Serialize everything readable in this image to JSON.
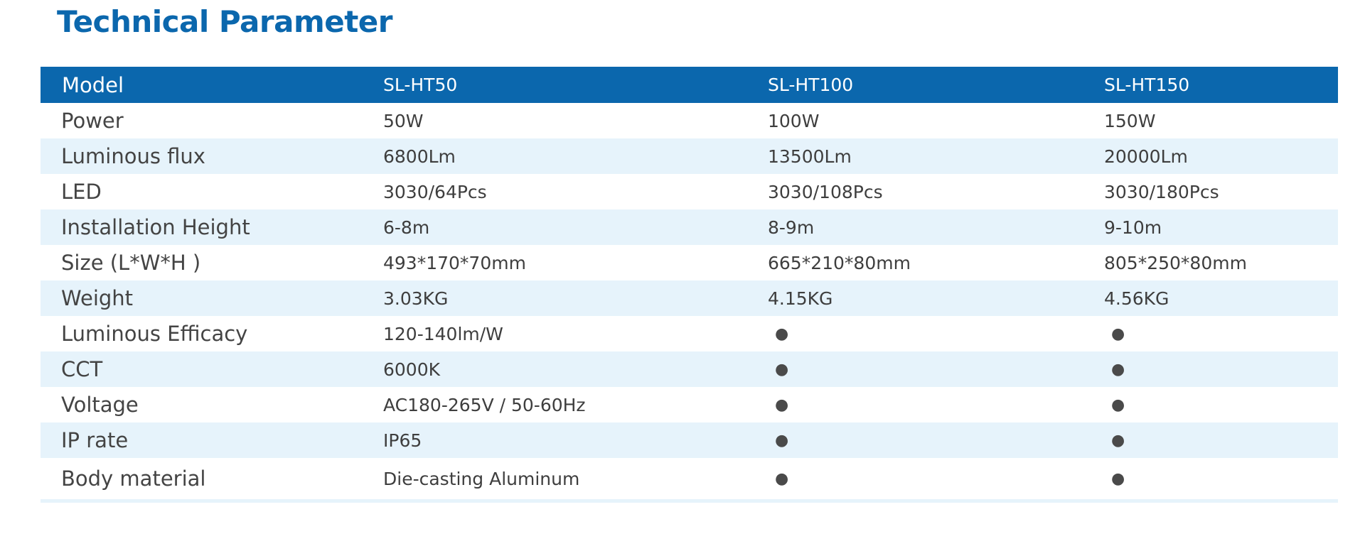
{
  "title": "Technical Parameter",
  "table": {
    "headers": [
      "Model",
      "SL-HT50",
      "SL-HT100",
      "SL-HT150"
    ],
    "rows": [
      {
        "label": "Power",
        "values": [
          "50W",
          "100W",
          "150W"
        ]
      },
      {
        "label": "Luminous flux",
        "values": [
          "6800Lm",
          "13500Lm",
          "20000Lm"
        ]
      },
      {
        "label": "LED",
        "values": [
          "3030/64Pcs",
          "3030/108Pcs",
          "3030/180Pcs"
        ]
      },
      {
        "label": "Installation Height",
        "values": [
          "6-8m",
          "8-9m",
          "9-10m"
        ]
      },
      {
        "label": "Size (L*W*H )",
        "values": [
          "493*170*70mm",
          "665*210*80mm",
          "805*250*80mm"
        ]
      },
      {
        "label": "Weight",
        "values": [
          "3.03KG",
          "4.15KG",
          "4.56KG"
        ]
      },
      {
        "label": "Luminous Efficacy",
        "values": [
          "120-140lm/W",
          "●",
          "●"
        ]
      },
      {
        "label": "CCT",
        "values": [
          "6000K",
          "●",
          "●"
        ]
      },
      {
        "label": "Voltage",
        "values": [
          "AC180-265V / 50-60Hz",
          "●",
          "●"
        ]
      },
      {
        "label": "IP rate",
        "values": [
          "IP65",
          "●",
          "●"
        ]
      },
      {
        "label": "Body material",
        "values": [
          "Die-casting Aluminum",
          "●",
          "●"
        ]
      }
    ]
  },
  "colors": {
    "accent": "#0b67ad",
    "row_alt": "#e6f3fb",
    "text": "#3e3e3e"
  }
}
